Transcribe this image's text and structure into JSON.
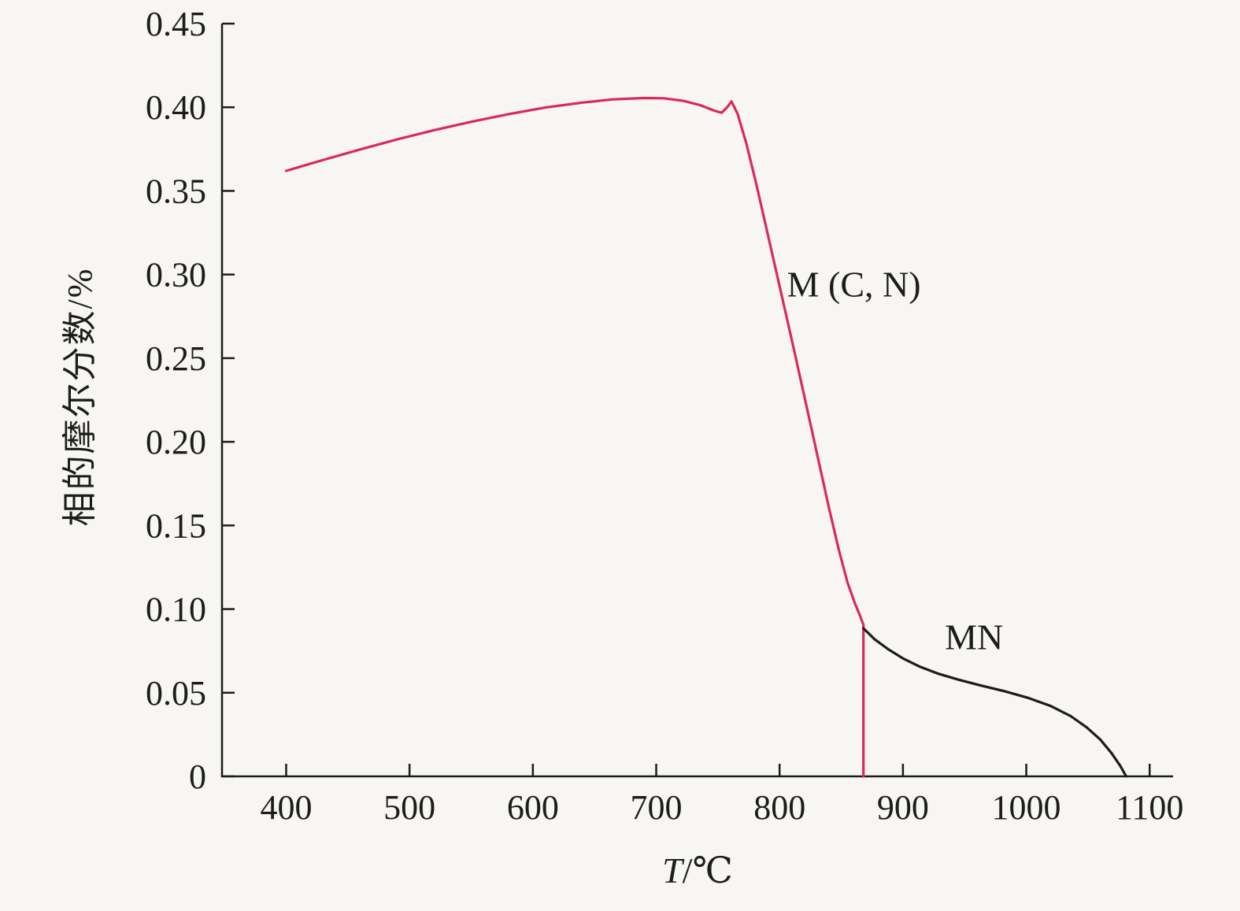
{
  "figure": {
    "background": "#f7f6f3"
  },
  "chart_data": {
    "type": "line",
    "title": "",
    "xlabel_italic": "T",
    "xlabel_rest": "/℃",
    "ylabel": "相的摩尔分数/%",
    "xlim": [
      348,
      1119
    ],
    "ylim": [
      0,
      0.45
    ],
    "grid": false,
    "legend": "none (inline annotations)",
    "axis_color": "#1c1c1c",
    "x_ticks": [
      {
        "value": 400,
        "label": "400"
      },
      {
        "value": 500,
        "label": "500"
      },
      {
        "value": 600,
        "label": "600"
      },
      {
        "value": 700,
        "label": "700"
      },
      {
        "value": 800,
        "label": "800"
      },
      {
        "value": 900,
        "label": "900"
      },
      {
        "value": 1000,
        "label": "1000"
      },
      {
        "value": 1100,
        "label": "1100"
      }
    ],
    "y_ticks": [
      {
        "value": 0,
        "label": "0"
      },
      {
        "value": 0.05,
        "label": "0.05"
      },
      {
        "value": 0.1,
        "label": "0.10"
      },
      {
        "value": 0.15,
        "label": "0.15"
      },
      {
        "value": 0.2,
        "label": "0.20"
      },
      {
        "value": 0.25,
        "label": "0.25"
      },
      {
        "value": 0.3,
        "label": "0.30"
      },
      {
        "value": 0.35,
        "label": "0.35"
      },
      {
        "value": 0.4,
        "label": "0.40"
      },
      {
        "value": 0.45,
        "label": "0.45"
      }
    ],
    "series": [
      {
        "name": "M(C,N)",
        "color": "#d9295b",
        "points": [
          [
            400,
            0.362
          ],
          [
            430,
            0.3685
          ],
          [
            460,
            0.3748
          ],
          [
            490,
            0.3808
          ],
          [
            520,
            0.3863
          ],
          [
            550,
            0.3913
          ],
          [
            580,
            0.3958
          ],
          [
            610,
            0.3998
          ],
          [
            640,
            0.4028
          ],
          [
            665,
            0.4047
          ],
          [
            690,
            0.4055
          ],
          [
            706,
            0.4054
          ],
          [
            722,
            0.4038
          ],
          [
            736,
            0.4012
          ],
          [
            747,
            0.398
          ],
          [
            753,
            0.3967
          ],
          [
            758,
            0.4005
          ],
          [
            761,
            0.4035
          ],
          [
            766,
            0.396
          ],
          [
            773,
            0.3785
          ],
          [
            781,
            0.3545
          ],
          [
            790,
            0.3255
          ],
          [
            800,
            0.293
          ],
          [
            810,
            0.2605
          ],
          [
            820,
            0.2275
          ],
          [
            830,
            0.194
          ],
          [
            840,
            0.1605
          ],
          [
            848,
            0.1355
          ],
          [
            855,
            0.116
          ],
          [
            861,
            0.1035
          ],
          [
            865,
            0.0965
          ],
          [
            868,
            0.0905
          ],
          [
            868,
            0.0
          ]
        ]
      },
      {
        "name": "MN",
        "color": "#1c1c1c",
        "points": [
          [
            868,
            0.0885
          ],
          [
            877,
            0.082
          ],
          [
            888,
            0.076
          ],
          [
            900,
            0.0705
          ],
          [
            913,
            0.0658
          ],
          [
            928,
            0.0615
          ],
          [
            945,
            0.0578
          ],
          [
            963,
            0.0543
          ],
          [
            982,
            0.051
          ],
          [
            1002,
            0.0468
          ],
          [
            1020,
            0.042
          ],
          [
            1036,
            0.036
          ],
          [
            1049,
            0.0293
          ],
          [
            1060,
            0.022
          ],
          [
            1069,
            0.014
          ],
          [
            1076,
            0.0065
          ],
          [
            1081,
            0.0
          ]
        ]
      }
    ],
    "annotations": [
      {
        "text": "M (C, N)",
        "x": 806,
        "y": 0.287,
        "color": "#1c1c1c"
      },
      {
        "text": "MN",
        "x": 934,
        "y": 0.076,
        "color": "#1c1c1c"
      }
    ]
  }
}
